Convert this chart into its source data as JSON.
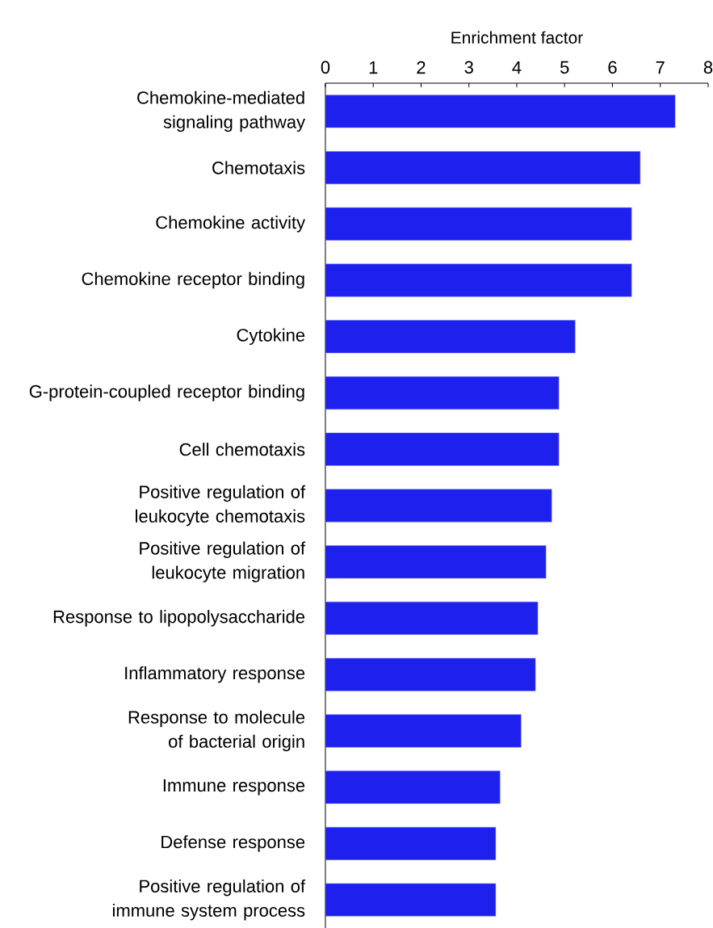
{
  "chart_data": {
    "type": "bar",
    "orientation": "horizontal",
    "xlabel": "Enrichment factor",
    "categories": [
      "Chemokine-mediated signaling pathway",
      "Chemotaxis",
      "Chemokine activity",
      "Chemokine receptor binding",
      "Cytokine",
      "G-protein-coupled receptor binding",
      "Cell chemotaxis",
      "Positive regulation of leukocyte chemotaxis",
      "Positive regulation of leukocyte migration",
      "Response to lipopolysaccharide",
      "Inflammatory response",
      "Response to molecule of bacterial origin",
      "Immune response",
      "Defense response",
      "Positive regulation of immune system process"
    ],
    "values": [
      7.31,
      6.58,
      6.4,
      6.4,
      5.22,
      4.88,
      4.88,
      4.73,
      4.61,
      4.44,
      4.39,
      4.09,
      3.65,
      3.56,
      3.56
    ],
    "color": "#1e20ed",
    "xlim": [
      0,
      8
    ],
    "xticks": [
      0,
      1,
      2,
      3,
      4,
      5,
      6,
      7,
      8
    ],
    "grid": false
  }
}
